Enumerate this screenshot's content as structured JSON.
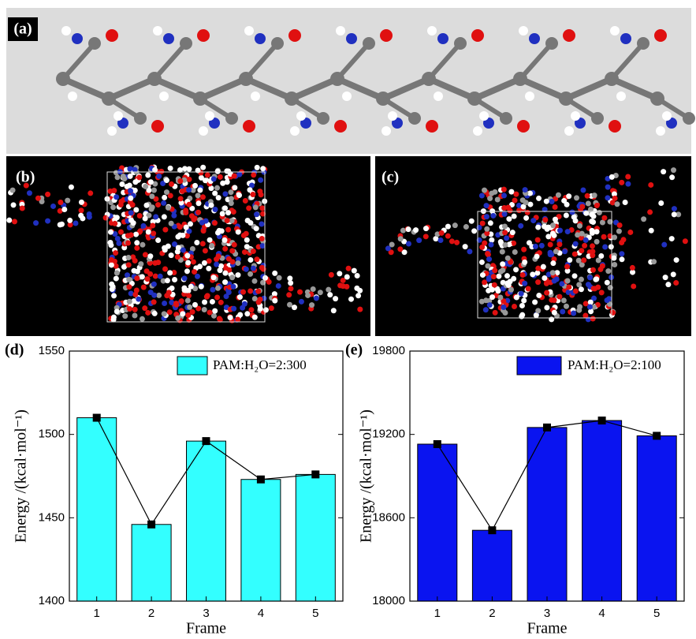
{
  "panel_labels": [
    "(a)",
    "(b)",
    "(c)"
  ],
  "chart_data": [
    {
      "type": "bar",
      "panel_label": "(d)",
      "xlabel": "Frame",
      "ylabel": "Energy /(kcal·mol⁻¹)",
      "categories": [
        "1",
        "2",
        "3",
        "4",
        "5"
      ],
      "series": [
        {
          "name": "PAM:H₂O=2:300",
          "color": "#33ffff",
          "values": [
            1510,
            1446,
            1496,
            1473,
            1476
          ]
        }
      ],
      "line_color": "#000000",
      "ylim": [
        1400,
        1550
      ],
      "yticks": [
        1400,
        1450,
        1500,
        1550
      ]
    },
    {
      "type": "bar",
      "panel_label": "(e)",
      "xlabel": "Frame",
      "ylabel": "Energy /(kcal·mol⁻¹)",
      "categories": [
        "1",
        "2",
        "3",
        "4",
        "5"
      ],
      "series": [
        {
          "name": "PAM:H₂O=2:100",
          "color": "#0a14f0",
          "values": [
            19130,
            18510,
            19250,
            19300,
            19190
          ]
        }
      ],
      "line_color": "#000000",
      "ylim": [
        18000,
        19800
      ],
      "yticks": [
        18000,
        18600,
        19200,
        19800
      ]
    }
  ]
}
